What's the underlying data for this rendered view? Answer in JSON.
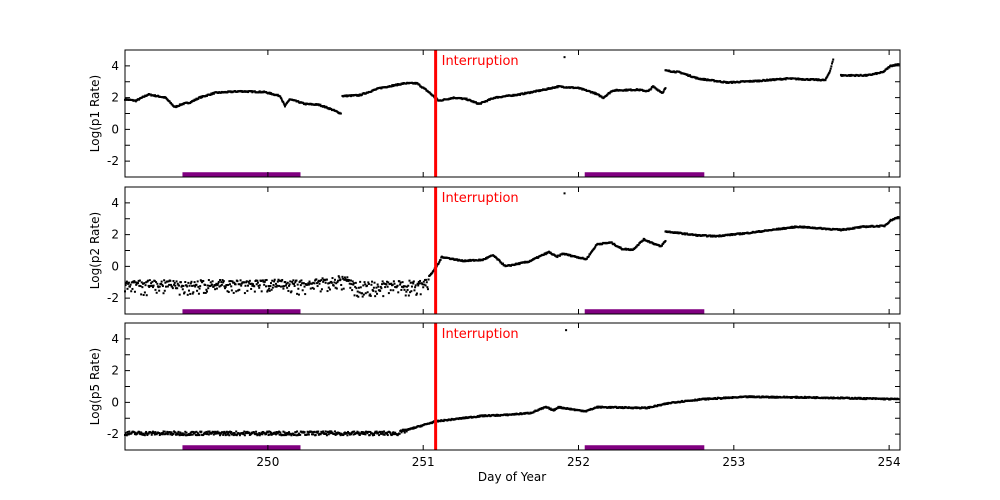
{
  "chart_data": [
    {
      "type": "scatter",
      "ylabel": "Log(p1 Rate)",
      "xlim": [
        249.08,
        254.07
      ],
      "ylim": [
        -3,
        5
      ],
      "yticks": [
        -2,
        0,
        2,
        4
      ],
      "xticks": [
        250,
        251,
        252,
        253,
        254
      ],
      "annotation": {
        "text": "Interruption",
        "x": 251.08,
        "color": "#ff0000"
      },
      "bars": [
        {
          "x0": 249.45,
          "x1": 250.21,
          "color": "#800080"
        },
        {
          "x0": 252.04,
          "x1": 252.81,
          "color": "#800080"
        }
      ],
      "segments": [
        [
          [
            249.08,
            1.9
          ],
          [
            249.15,
            1.8
          ],
          [
            249.23,
            2.2
          ],
          [
            249.34,
            2.0
          ],
          [
            249.4,
            1.4
          ],
          [
            249.45,
            1.6
          ],
          [
            249.5,
            1.7
          ],
          [
            249.56,
            2.0
          ],
          [
            249.66,
            2.3
          ],
          [
            249.82,
            2.4
          ],
          [
            249.98,
            2.35
          ],
          [
            250.08,
            2.1
          ],
          [
            250.11,
            1.45
          ],
          [
            250.14,
            1.9
          ],
          [
            250.24,
            1.6
          ],
          [
            250.33,
            1.55
          ],
          [
            250.4,
            1.3
          ],
          [
            250.47,
            1.0
          ]
        ],
        [
          [
            250.48,
            2.1
          ],
          [
            250.59,
            2.15
          ],
          [
            250.72,
            2.6
          ],
          [
            250.88,
            2.9
          ],
          [
            250.96,
            2.9
          ],
          [
            251.03,
            2.4
          ],
          [
            251.1,
            1.8
          ],
          [
            251.2,
            2.0
          ],
          [
            251.28,
            1.9
          ],
          [
            251.36,
            1.6
          ],
          [
            251.46,
            2.0
          ],
          [
            251.62,
            2.2
          ],
          [
            251.78,
            2.5
          ],
          [
            251.87,
            2.7
          ],
          [
            252.0,
            2.6
          ],
          [
            252.1,
            2.3
          ],
          [
            252.16,
            2.0
          ],
          [
            252.22,
            2.45
          ],
          [
            252.38,
            2.5
          ],
          [
            252.45,
            2.4
          ],
          [
            252.48,
            2.7
          ],
          [
            252.54,
            2.3
          ],
          [
            252.56,
            2.6
          ]
        ],
        [
          [
            252.56,
            3.7
          ],
          [
            252.65,
            3.6
          ],
          [
            252.77,
            3.2
          ],
          [
            252.96,
            2.95
          ],
          [
            253.15,
            3.05
          ],
          [
            253.35,
            3.2
          ],
          [
            253.59,
            3.1
          ],
          [
            253.62,
            3.7
          ],
          [
            253.64,
            4.4
          ]
        ],
        [
          [
            253.69,
            3.4
          ],
          [
            253.86,
            3.4
          ],
          [
            253.96,
            3.6
          ],
          [
            254.01,
            4.0
          ],
          [
            254.06,
            4.1
          ]
        ]
      ],
      "outliers": [
        [
          251.91,
          4.55
        ]
      ]
    },
    {
      "type": "scatter",
      "ylabel": "Log(p2 Rate)",
      "xlim": [
        249.08,
        254.07
      ],
      "ylim": [
        -3,
        5
      ],
      "yticks": [
        -2,
        0,
        2,
        4
      ],
      "xticks": [
        250,
        251,
        252,
        253,
        254
      ],
      "annotation": {
        "text": "Interruption",
        "x": 251.08,
        "color": "#ff0000"
      },
      "bars": [
        {
          "x0": 249.45,
          "x1": 250.21,
          "color": "#800080"
        },
        {
          "x0": 252.04,
          "x1": 252.81,
          "color": "#800080"
        }
      ],
      "segments": [
        [
          [
            249.08,
            -1.1
          ],
          [
            250.3,
            -1.05
          ],
          [
            250.5,
            -0.75
          ],
          [
            250.55,
            -1.2
          ],
          [
            251.0,
            -1.1
          ],
          [
            251.05,
            -0.5
          ],
          [
            251.1,
            0.2
          ],
          [
            251.12,
            0.6
          ],
          [
            251.25,
            0.35
          ],
          [
            251.38,
            0.4
          ],
          [
            251.45,
            0.7
          ],
          [
            251.53,
            0.0
          ],
          [
            251.68,
            0.3
          ],
          [
            251.81,
            0.9
          ],
          [
            251.86,
            0.6
          ],
          [
            251.9,
            0.8
          ],
          [
            252.05,
            0.45
          ],
          [
            252.12,
            1.4
          ],
          [
            252.21,
            1.5
          ],
          [
            252.28,
            1.1
          ],
          [
            252.35,
            1.05
          ],
          [
            252.42,
            1.7
          ],
          [
            252.47,
            1.5
          ],
          [
            252.53,
            1.25
          ],
          [
            252.56,
            1.6
          ]
        ],
        [
          [
            252.56,
            2.2
          ],
          [
            252.77,
            1.95
          ],
          [
            252.88,
            1.9
          ],
          [
            253.09,
            2.1
          ],
          [
            253.41,
            2.5
          ],
          [
            253.69,
            2.3
          ],
          [
            253.84,
            2.5
          ],
          [
            253.97,
            2.55
          ],
          [
            254.01,
            2.9
          ],
          [
            254.06,
            3.1
          ]
        ]
      ],
      "outliers": [
        [
          251.91,
          4.6
        ]
      ]
    },
    {
      "type": "scatter",
      "ylabel": "Log(p5 Rate)",
      "xlabel": "Day of Year",
      "xlim": [
        249.08,
        254.07
      ],
      "ylim": [
        -3,
        5
      ],
      "yticks": [
        -2,
        0,
        2,
        4
      ],
      "xticks": [
        250,
        251,
        252,
        253,
        254
      ],
      "annotation": {
        "text": "Interruption",
        "x": 251.08,
        "color": "#ff0000"
      },
      "bars": [
        {
          "x0": 249.45,
          "x1": 250.21,
          "color": "#800080"
        },
        {
          "x0": 252.04,
          "x1": 252.81,
          "color": "#800080"
        }
      ],
      "segments": [
        [
          [
            249.08,
            -1.95
          ],
          [
            250.84,
            -1.95
          ],
          [
            250.91,
            -1.7
          ],
          [
            251.08,
            -1.2
          ],
          [
            251.38,
            -0.85
          ],
          [
            251.52,
            -0.8
          ],
          [
            251.69,
            -0.67
          ],
          [
            251.79,
            -0.3
          ],
          [
            251.84,
            -0.5
          ],
          [
            251.87,
            -0.3
          ],
          [
            252.0,
            -0.5
          ],
          [
            252.05,
            -0.55
          ],
          [
            252.12,
            -0.3
          ],
          [
            252.44,
            -0.35
          ],
          [
            252.61,
            0.0
          ],
          [
            252.8,
            0.2
          ],
          [
            253.09,
            0.35
          ],
          [
            253.57,
            0.3
          ],
          [
            254.06,
            0.2
          ]
        ]
      ],
      "outliers": [
        [
          251.92,
          4.55
        ]
      ]
    }
  ]
}
